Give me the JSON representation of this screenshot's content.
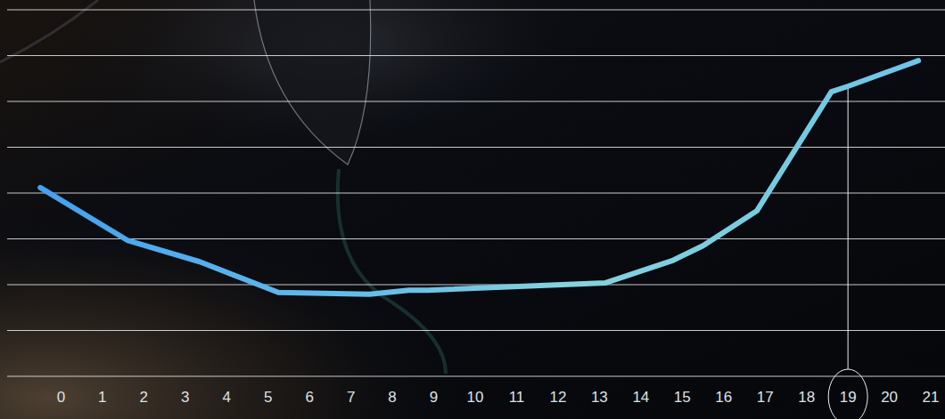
{
  "chart_data": {
    "type": "line",
    "x": [
      -0.5,
      1.6,
      3.35,
      5.25,
      7.45,
      8.4,
      8.85,
      13.15,
      14.75,
      15.5,
      16.8,
      18.6,
      19,
      20.7
    ],
    "values": [
      4.12,
      2.97,
      2.5,
      1.83,
      1.79,
      1.88,
      1.88,
      2.04,
      2.52,
      2.85,
      3.61,
      6.21,
      6.33,
      6.89
    ],
    "color": "#6cc3e6",
    "xlim": [
      -1.3,
      21.3
    ],
    "xticks": [
      0,
      1,
      2,
      3,
      4,
      5,
      6,
      7,
      8,
      9,
      10,
      11,
      12,
      13,
      14,
      15,
      16,
      17,
      18,
      19,
      20,
      21
    ],
    "ylim": [
      0,
      8
    ],
    "yticks": [
      0,
      1,
      2,
      3,
      4,
      5,
      6,
      7,
      8
    ],
    "grid": true,
    "tick_labels": "x",
    "highlight_x": 19
  }
}
